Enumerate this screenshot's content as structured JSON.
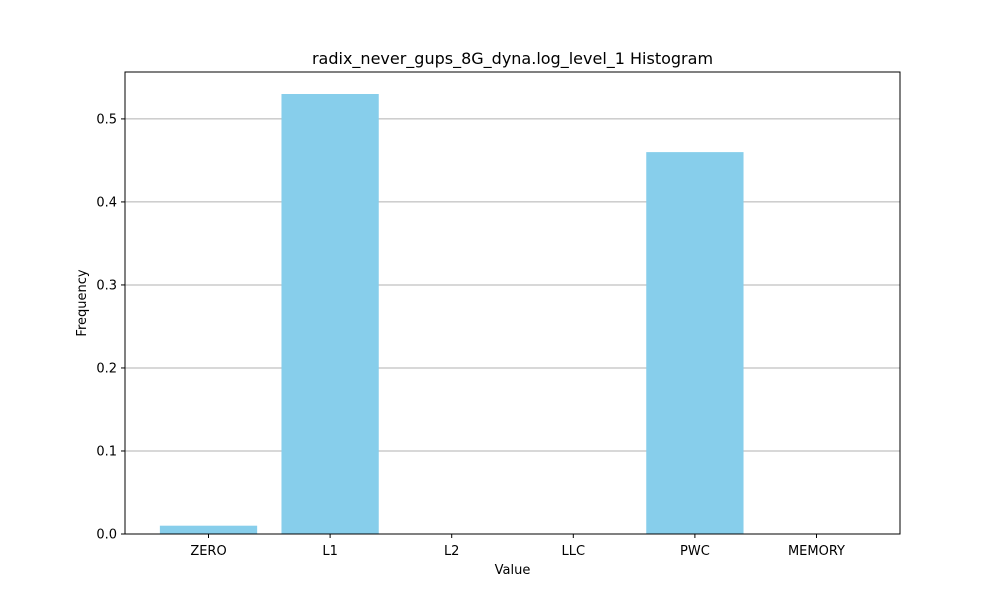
{
  "chart_data": {
    "type": "bar",
    "title": "radix_never_gups_8G_dyna.log_level_1 Histogram",
    "xlabel": "Value",
    "ylabel": "Frequency",
    "categories": [
      "ZERO",
      "L1",
      "L2",
      "LLC",
      "PWC",
      "MEMORY"
    ],
    "values": [
      0.01,
      0.53,
      0.0,
      0.0,
      0.46,
      0.0
    ],
    "ylim": [
      0,
      0.5565
    ],
    "yticks": [
      "0.0",
      "0.1",
      "0.2",
      "0.3",
      "0.4",
      "0.5"
    ],
    "grid": "y-major",
    "bar_color": "#87ceeb",
    "grid_color": "#b0b0b0",
    "axis_color": "#000000"
  }
}
